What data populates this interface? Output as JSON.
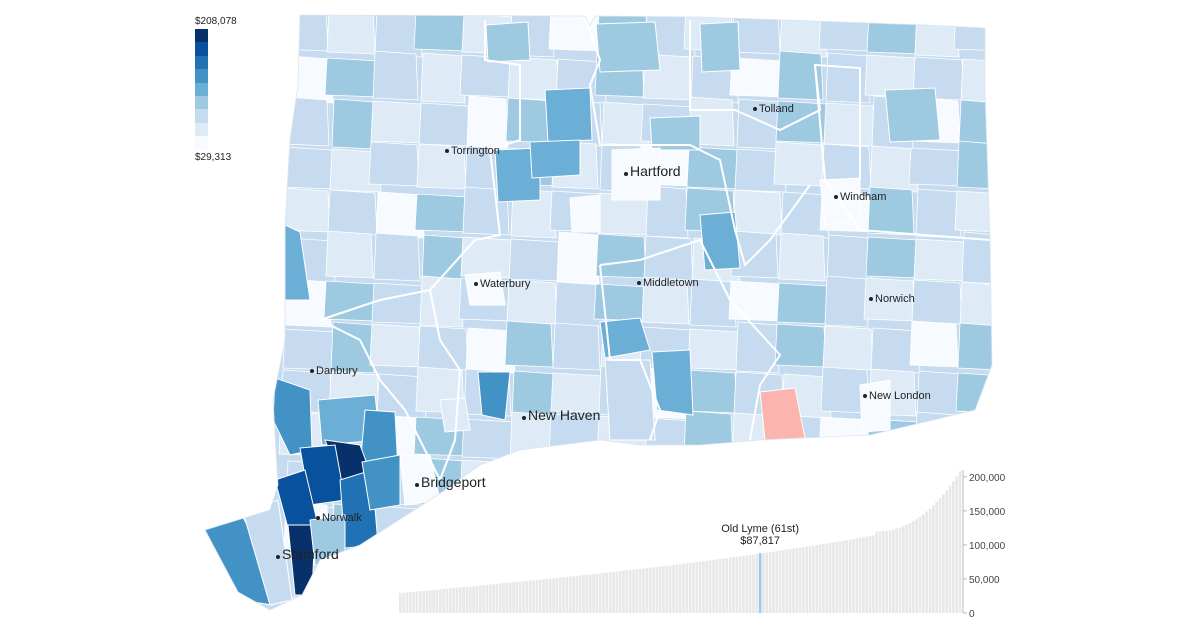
{
  "legend": {
    "max_label": "$208,078",
    "min_label": "$29,313",
    "colors": [
      "#08306b",
      "#08519c",
      "#2171b5",
      "#4292c6",
      "#6baed6",
      "#9ecae1",
      "#c6dbef",
      "#deebf7",
      "#f7fbff"
    ]
  },
  "highlight_color": "#fbb4ae",
  "cities": [
    {
      "name": "Torrington"
    },
    {
      "name": "Hartford"
    },
    {
      "name": "Tolland"
    },
    {
      "name": "Windham"
    },
    {
      "name": "Waterbury"
    },
    {
      "name": "Middletown"
    },
    {
      "name": "Norwich"
    },
    {
      "name": "Danbury"
    },
    {
      "name": "New London"
    },
    {
      "name": "New Haven"
    },
    {
      "name": "Bridgeport"
    },
    {
      "name": "Norwalk"
    },
    {
      "name": "Stamford"
    }
  ],
  "chart_data": {
    "type": "bar",
    "n_bars": 169,
    "highlight": {
      "label": "Old Lyme (61st)",
      "value_label": "$87,817",
      "rank": 61,
      "value": 87817
    },
    "yticks": [
      "200,000",
      "150,000",
      "100,000",
      "50,000",
      "0"
    ],
    "ylim": [
      0,
      210000
    ],
    "value_range": [
      29313,
      208078
    ],
    "bar_color": "#e8e8e8",
    "highlight_bar_color": "#9ecae1"
  }
}
